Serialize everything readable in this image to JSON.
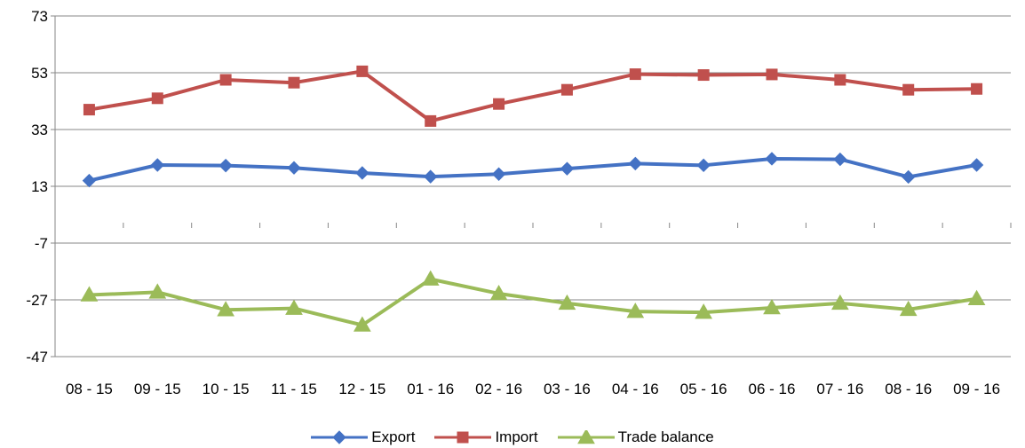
{
  "chart_data": {
    "type": "line",
    "categories": [
      "08 - 15",
      "09 - 15",
      "10 - 15",
      "11 - 15",
      "12 - 15",
      "01 - 16",
      "02 - 16",
      "03 - 16",
      "04 - 16",
      "05 - 16",
      "06 - 16",
      "07 - 16",
      "08 - 16",
      "09 - 16"
    ],
    "series": [
      {
        "name": "Export",
        "color": "#4472C4",
        "marker": "diamond",
        "values": [
          15,
          20.5,
          20.3,
          19.5,
          17.7,
          16.4,
          17.3,
          19.2,
          21,
          20.4,
          22.7,
          22.5,
          16.3,
          20.5
        ]
      },
      {
        "name": "Import",
        "color": "#C0504D",
        "marker": "square",
        "values": [
          40,
          44,
          50.5,
          49.5,
          53.5,
          36,
          42,
          47,
          52.5,
          52.2,
          52.4,
          50.5,
          47,
          47.3
        ]
      },
      {
        "name": "Trade balance",
        "color": "#9BBB59",
        "marker": "triangle",
        "values": [
          -25.3,
          -24.3,
          -30.5,
          -30,
          -35.9,
          -19.7,
          -24.8,
          -28.2,
          -31.1,
          -31.4,
          -29.8,
          -28.2,
          -30.4,
          -26.6
        ]
      }
    ],
    "y_ticks": [
      "73",
      "53",
      "33",
      "13",
      "-7",
      "-27",
      "-47"
    ],
    "ylim": [
      -47,
      73
    ],
    "grid": "horizontal",
    "legend_position": "bottom"
  }
}
